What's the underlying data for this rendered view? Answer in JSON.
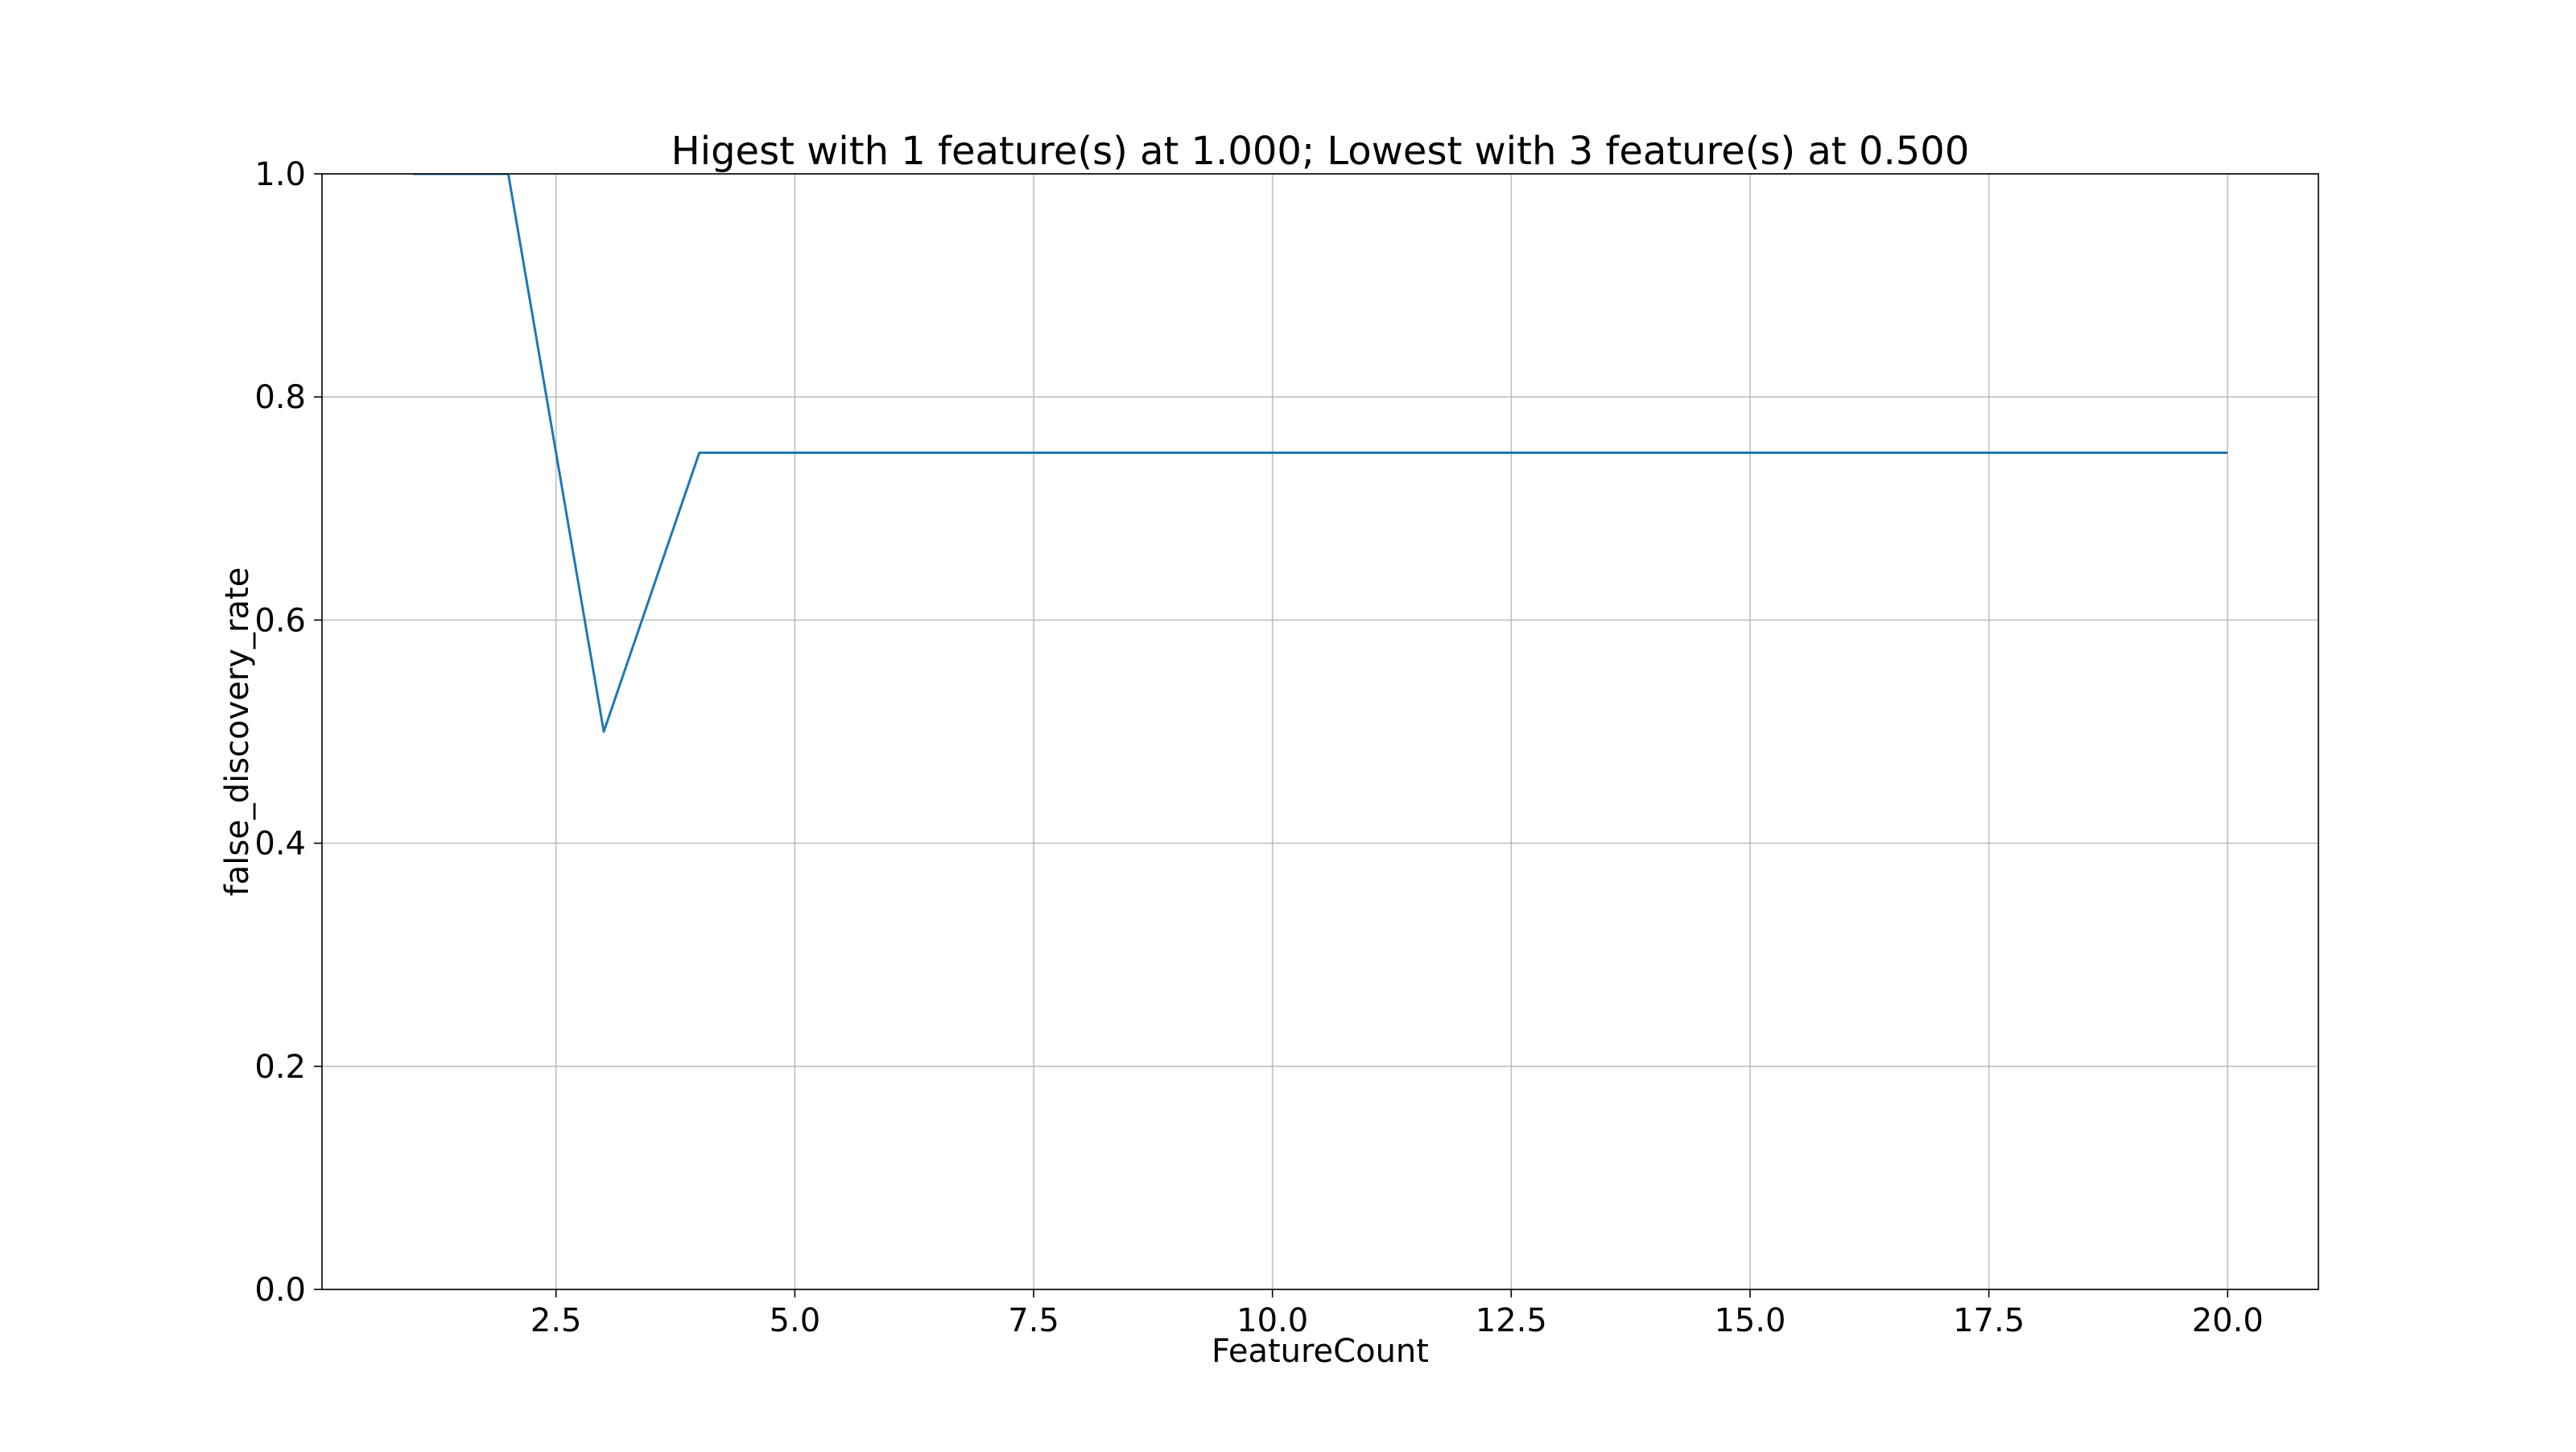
{
  "chart_data": {
    "type": "line",
    "title": "Higest with 1 feature(s) at 1.000; Lowest with 3 feature(s) at 0.500",
    "xlabel": "FeatureCount",
    "ylabel": "false_discovery_rate",
    "xlim": [
      0.05,
      20.95
    ],
    "ylim": [
      0.0,
      1.0
    ],
    "x_ticks": [
      2.5,
      5.0,
      7.5,
      10.0,
      12.5,
      15.0,
      17.5,
      20.0
    ],
    "x_tick_labels": [
      "2.5",
      "5.0",
      "7.5",
      "10.0",
      "12.5",
      "15.0",
      "17.5",
      "20.0"
    ],
    "y_ticks": [
      0.0,
      0.2,
      0.4,
      0.6,
      0.8,
      1.0
    ],
    "y_tick_labels": [
      "0.0",
      "0.2",
      "0.4",
      "0.6",
      "0.8",
      "1.0"
    ],
    "grid": true,
    "series": [
      {
        "color": "#1f77b4",
        "x": [
          1,
          2,
          3,
          4,
          5,
          6,
          7,
          8,
          9,
          10,
          11,
          12,
          13,
          14,
          15,
          16,
          17,
          18,
          19,
          20
        ],
        "y": [
          1.0,
          1.0,
          0.5,
          0.75,
          0.75,
          0.75,
          0.75,
          0.75,
          0.75,
          0.75,
          0.75,
          0.75,
          0.75,
          0.75,
          0.75,
          0.75,
          0.75,
          0.75,
          0.75,
          0.75
        ]
      }
    ]
  }
}
